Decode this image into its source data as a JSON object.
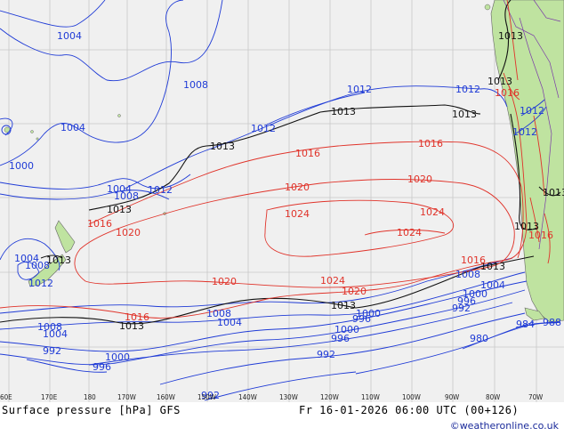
{
  "title": "Surface pressure [hPa] GFS",
  "timestamp": "Fr 16-01-2026 06:00 UTC (00+126)",
  "credit": "©weatheronline.co.uk",
  "colors": {
    "ocean": "#f0f0f0",
    "land": "#bfe3a0",
    "isobar_low": "#1f3bd6",
    "isobar_standard": "#111111",
    "isobar_high": "#e0332a"
  },
  "longitude_ticks": [
    "60E",
    "170E",
    "180",
    "170W",
    "160W",
    "150W",
    "140W",
    "130W",
    "120W",
    "110W",
    "100W",
    "90W",
    "80W",
    "70W"
  ],
  "isobar_labels": {
    "blue": [
      "1004",
      "1008",
      "1004",
      "1000",
      "1004",
      "1008",
      "1012",
      "1012",
      "1012",
      "1012",
      "1004",
      "1008",
      "1012",
      "1008",
      "1004",
      "1000",
      "996",
      "992",
      "1000",
      "996",
      "992",
      "1008",
      "1004",
      "1000",
      "996",
      "992",
      "980",
      "984",
      "988",
      "1008",
      "1004",
      "1000",
      "996",
      "992",
      "1012",
      "1012"
    ],
    "black": [
      "1013",
      "1013",
      "1013",
      "1013",
      "1013",
      "1013",
      "1013",
      "1013",
      "1013",
      "1013",
      "1013",
      "1013"
    ],
    "red": [
      "1016",
      "1016",
      "1020",
      "1020",
      "1024",
      "1024",
      "1024",
      "1016",
      "1020",
      "1024",
      "1020",
      "1016",
      "1016",
      "1020",
      "1016",
      "1016"
    ]
  }
}
